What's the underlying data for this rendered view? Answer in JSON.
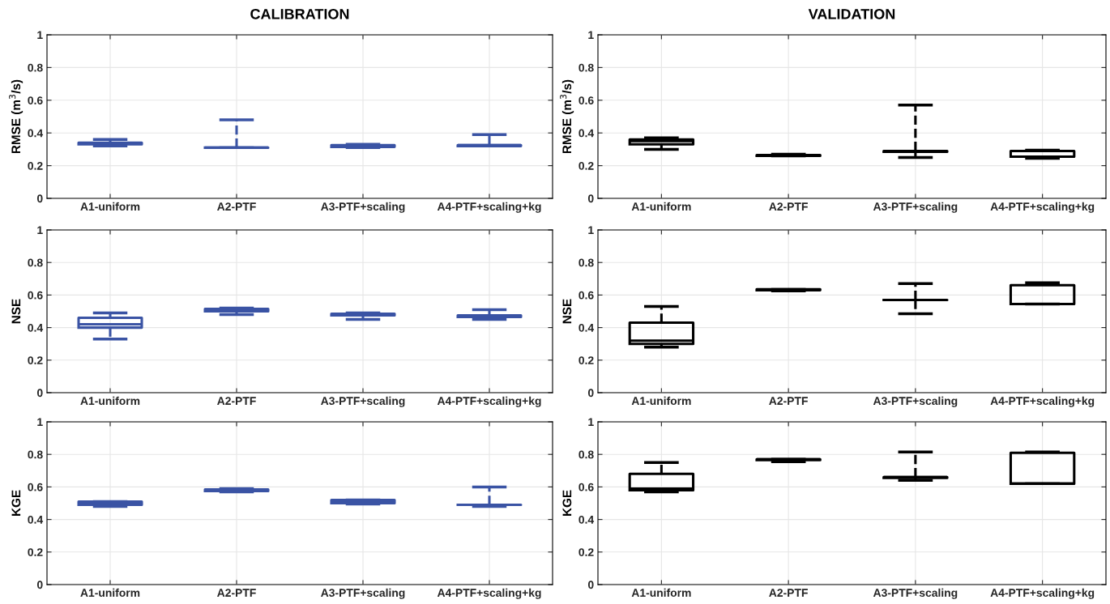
{
  "chart_data": [
    {
      "type": "box",
      "title": "CALIBRATION",
      "ylabel": "RMSE (m$^{3}$/s)",
      "categories": [
        "A1-uniform",
        "A2-PTF",
        "A3-PTF+scaling",
        "A4-PTF+scaling+kg"
      ],
      "color": "#3a53a4",
      "ylim": [
        0,
        1
      ],
      "yticks": [
        0,
        0.2,
        0.4,
        0.6,
        0.8,
        1
      ],
      "grid": true,
      "boxes": [
        {
          "low": 0.32,
          "q1": 0.33,
          "median": 0.335,
          "q3": 0.34,
          "high": 0.36
        },
        {
          "low": 0.31,
          "q1": 0.31,
          "median": 0.31,
          "q3": 0.31,
          "high": 0.48
        },
        {
          "low": 0.31,
          "q1": 0.315,
          "median": 0.32,
          "q3": 0.325,
          "high": 0.33
        },
        {
          "low": 0.32,
          "q1": 0.32,
          "median": 0.325,
          "q3": 0.325,
          "high": 0.39
        }
      ]
    },
    {
      "type": "box",
      "title": "VALIDATION",
      "ylabel": "RMSE (m$^{3}$/s)",
      "categories": [
        "A1-uniform",
        "A2-PTF",
        "A3-PTF+scaling",
        "A4-PTF+scaling+kg"
      ],
      "color": "#000000",
      "ylim": [
        0,
        1
      ],
      "yticks": [
        0,
        0.2,
        0.4,
        0.6,
        0.8,
        1
      ],
      "grid": true,
      "boxes": [
        {
          "low": 0.3,
          "q1": 0.33,
          "median": 0.35,
          "q3": 0.36,
          "high": 0.37
        },
        {
          "low": 0.26,
          "q1": 0.26,
          "median": 0.265,
          "q3": 0.265,
          "high": 0.27
        },
        {
          "low": 0.25,
          "q1": 0.285,
          "median": 0.29,
          "q3": 0.29,
          "high": 0.57
        },
        {
          "low": 0.245,
          "q1": 0.255,
          "median": 0.29,
          "q3": 0.29,
          "high": 0.295
        }
      ]
    },
    {
      "type": "box",
      "ylabel": "NSE",
      "categories": [
        "A1-uniform",
        "A2-PTF",
        "A3-PTF+scaling",
        "A4-PTF+scaling+kg"
      ],
      "color": "#3a53a4",
      "ylim": [
        0,
        1
      ],
      "yticks": [
        0,
        0.2,
        0.4,
        0.6,
        0.8,
        1
      ],
      "grid": true,
      "boxes": [
        {
          "low": 0.33,
          "q1": 0.4,
          "median": 0.42,
          "q3": 0.46,
          "high": 0.49
        },
        {
          "low": 0.48,
          "q1": 0.5,
          "median": 0.51,
          "q3": 0.515,
          "high": 0.52
        },
        {
          "low": 0.45,
          "q1": 0.475,
          "median": 0.48,
          "q3": 0.485,
          "high": 0.49
        },
        {
          "low": 0.45,
          "q1": 0.465,
          "median": 0.47,
          "q3": 0.475,
          "high": 0.51
        }
      ]
    },
    {
      "type": "box",
      "ylabel": "NSE",
      "categories": [
        "A1-uniform",
        "A2-PTF",
        "A3-PTF+scaling",
        "A4-PTF+scaling+kg"
      ],
      "color": "#000000",
      "ylim": [
        0,
        1
      ],
      "yticks": [
        0,
        0.2,
        0.4,
        0.6,
        0.8,
        1
      ],
      "grid": true,
      "boxes": [
        {
          "low": 0.28,
          "q1": 0.3,
          "median": 0.32,
          "q3": 0.43,
          "high": 0.53
        },
        {
          "low": 0.625,
          "q1": 0.63,
          "median": 0.63,
          "q3": 0.635,
          "high": 0.635
        },
        {
          "low": 0.485,
          "q1": 0.57,
          "median": 0.57,
          "q3": 0.57,
          "high": 0.67
        },
        {
          "low": 0.545,
          "q1": 0.545,
          "median": 0.545,
          "q3": 0.66,
          "high": 0.675
        }
      ]
    },
    {
      "type": "box",
      "ylabel": "KGE",
      "categories": [
        "A1-uniform",
        "A2-PTF",
        "A3-PTF+scaling",
        "A4-PTF+scaling+kg"
      ],
      "color": "#3a53a4",
      "ylim": [
        0,
        1
      ],
      "yticks": [
        0,
        0.2,
        0.4,
        0.6,
        0.8,
        1
      ],
      "grid": true,
      "boxes": [
        {
          "low": 0.48,
          "q1": 0.49,
          "median": 0.5,
          "q3": 0.51,
          "high": 0.51
        },
        {
          "low": 0.57,
          "q1": 0.575,
          "median": 0.58,
          "q3": 0.585,
          "high": 0.59
        },
        {
          "low": 0.495,
          "q1": 0.5,
          "median": 0.51,
          "q3": 0.52,
          "high": 0.52
        },
        {
          "low": 0.48,
          "q1": 0.49,
          "median": 0.49,
          "q3": 0.49,
          "high": 0.6
        }
      ]
    },
    {
      "type": "box",
      "ylabel": "KGE",
      "categories": [
        "A1-uniform",
        "A2-PTF",
        "A3-PTF+scaling",
        "A4-PTF+scaling+kg"
      ],
      "color": "#000000",
      "ylim": [
        0,
        1
      ],
      "yticks": [
        0,
        0.2,
        0.4,
        0.6,
        0.8,
        1
      ],
      "grid": true,
      "boxes": [
        {
          "low": 0.57,
          "q1": 0.58,
          "median": 0.59,
          "q3": 0.68,
          "high": 0.75
        },
        {
          "low": 0.755,
          "q1": 0.765,
          "median": 0.77,
          "q3": 0.77,
          "high": 0.77
        },
        {
          "low": 0.64,
          "q1": 0.655,
          "median": 0.66,
          "q3": 0.66,
          "high": 0.815
        },
        {
          "low": 0.62,
          "q1": 0.62,
          "median": 0.62,
          "q3": 0.81,
          "high": 0.815
        }
      ]
    }
  ]
}
